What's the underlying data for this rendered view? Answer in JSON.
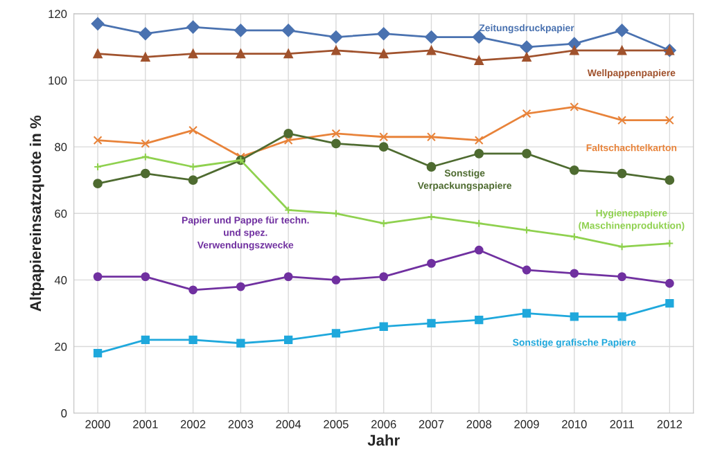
{
  "chart_data": {
    "type": "line",
    "xlabel": "Jahr",
    "ylabel": "Altpapiereinsatzquote in %",
    "categories": [
      "2000",
      "2001",
      "2002",
      "2003",
      "2004",
      "2005",
      "2006",
      "2007",
      "2008",
      "2009",
      "2010",
      "2011",
      "2012"
    ],
    "ylim": [
      0,
      120
    ],
    "yticks": [
      0,
      20,
      40,
      60,
      80,
      100,
      120
    ],
    "grid": true,
    "legend": false,
    "series": [
      {
        "name": "Zeitungsdruckpapier",
        "color": "#4a72b0",
        "marker": "diamond",
        "values": [
          117,
          114,
          116,
          115,
          115,
          113,
          114,
          113,
          113,
          110,
          111,
          115,
          109
        ]
      },
      {
        "name": "Wellpappenpapiere",
        "color": "#a0522d",
        "marker": "triangle",
        "values": [
          108,
          107,
          108,
          108,
          108,
          109,
          108,
          109,
          106,
          107,
          109,
          109,
          109
        ]
      },
      {
        "name": "Faltschachtelkarton",
        "color": "#e8833a",
        "marker": "cross",
        "values": [
          82,
          81,
          85,
          77,
          82,
          84,
          83,
          83,
          82,
          90,
          92,
          88,
          88
        ]
      },
      {
        "name": "Sonstige\nVerpackungspapiere",
        "color": "#4e6b30",
        "marker": "circle",
        "values": [
          69,
          72,
          70,
          76,
          84,
          81,
          80,
          74,
          78,
          78,
          73,
          72,
          70
        ]
      },
      {
        "name": "Hygienepapiere\n(Maschinenproduktion)",
        "color": "#8fd14f",
        "marker": "plus",
        "values": [
          74,
          77,
          74,
          76,
          61,
          60,
          57,
          59,
          57,
          55,
          53,
          50,
          51
        ]
      },
      {
        "name": "Papier und Pappe für techn.\nund spez.\nVerwendungszwecke",
        "color": "#7030a0",
        "marker": "circle",
        "values": [
          41,
          41,
          37,
          38,
          41,
          40,
          41,
          45,
          49,
          43,
          42,
          41,
          39
        ]
      },
      {
        "name": "Sonstige grafische Papiere",
        "color": "#1fa8dc",
        "marker": "square",
        "values": [
          18,
          22,
          22,
          21,
          22,
          24,
          26,
          27,
          28,
          30,
          29,
          29,
          33
        ]
      }
    ]
  }
}
